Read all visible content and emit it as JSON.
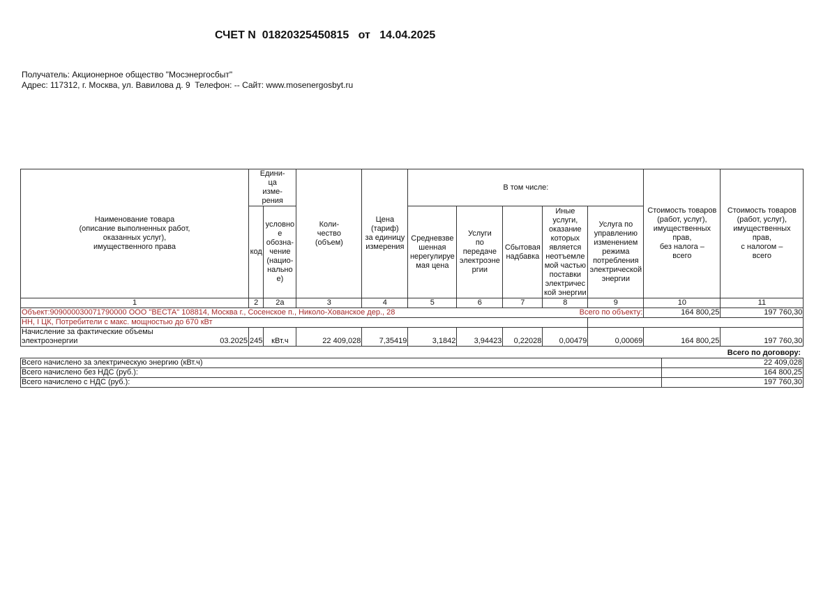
{
  "title": {
    "label": "СЧЕТ N",
    "number": "01820325450815",
    "from": "от",
    "date": "14.04.2025"
  },
  "recipient": {
    "line1": "Получатель: Акционерное общество \"Мосэнергосбыт\"",
    "line2": "Адрес: 117312, г. Москва, ул. Вавилова д. 9  Телефон: -- Сайт: www.mosenergosbyt.ru"
  },
  "table": {
    "headers": {
      "name": "Наименование товара\n(описание выполненных работ,\nоказанных услуг),\nимущественного права",
      "unit": "Едини-\nца\nизме-\nрения",
      "code": "код",
      "unit_sign": "условно\nе\nобозна-\nчение\n(нацио-\nнально\nе)",
      "qty": "Коли-\nчество\n(объем)",
      "price": "Цена\n(тариф)\nза единицу\nизмерения",
      "including": "В том числе:",
      "c5": "Средневзве\nшенная\nнерегулируе\nмая цена",
      "c6": "Услуги\nпо\nпередаче\nэлектроэне\nргии",
      "c7": "Сбытовая\nнадбавка",
      "c8": "Иные\nуслуги,\nоказание\nкоторых\nявляется\nнеотъемле\nмой частью\nпоставки\nэлектричес\nкой энергии",
      "c9": "Услуга по\nуправлению\nизменением\nрежима\nпотребления\nэлектрической\nэнергии",
      "c10": "Стоимость товаров\n(работ, услуг),\nимущественных\nправ,\nбез налога –\nвсего",
      "c11": "Стоимость товаров\n(работ, услуг),\nимущественных\nправ,\nс налогом –\nвсего"
    },
    "col_numbers": [
      "1",
      "2",
      "2а",
      "3",
      "4",
      "5",
      "6",
      "7",
      "8",
      "9",
      "10",
      "11"
    ],
    "object": {
      "text": "Объект:909000030071790000 ООО \"ВЕСТА\"   108814, Москва г., Сосенское п., Николо-Хованское дер., 28",
      "total_label": "Всего по объекту:",
      "total_no_tax": "164 800,25",
      "total_with_tax": "197 760,30"
    },
    "category": "НН, I ЦК, Потребители с макс. мощностью до 670 кВт",
    "row": {
      "name": "Начисление за фактические объемы\nэлектроэнергии",
      "period": "03.2025",
      "code": "245",
      "unit": "кВт.ч",
      "qty": "22 409,028",
      "price": "7,35419",
      "c5": "3,1842",
      "c6": "3,94423",
      "c7": "0,22028",
      "c8": "0,00479",
      "c9": "0,00069",
      "c10": "164 800,25",
      "c11": "197 760,30"
    }
  },
  "contract": {
    "label": "Всего по договору:",
    "rows": [
      {
        "label": "Всего начислено за электрическую энергию (кВт.ч)",
        "value": "22 409,028"
      },
      {
        "label": "Всего начислено без НДС (руб.):",
        "value": "164 800,25"
      },
      {
        "label": "Всего начислено с НДС (руб.):",
        "value": "197 760,30"
      }
    ]
  },
  "colors": {
    "red": "#a52a2a"
  }
}
